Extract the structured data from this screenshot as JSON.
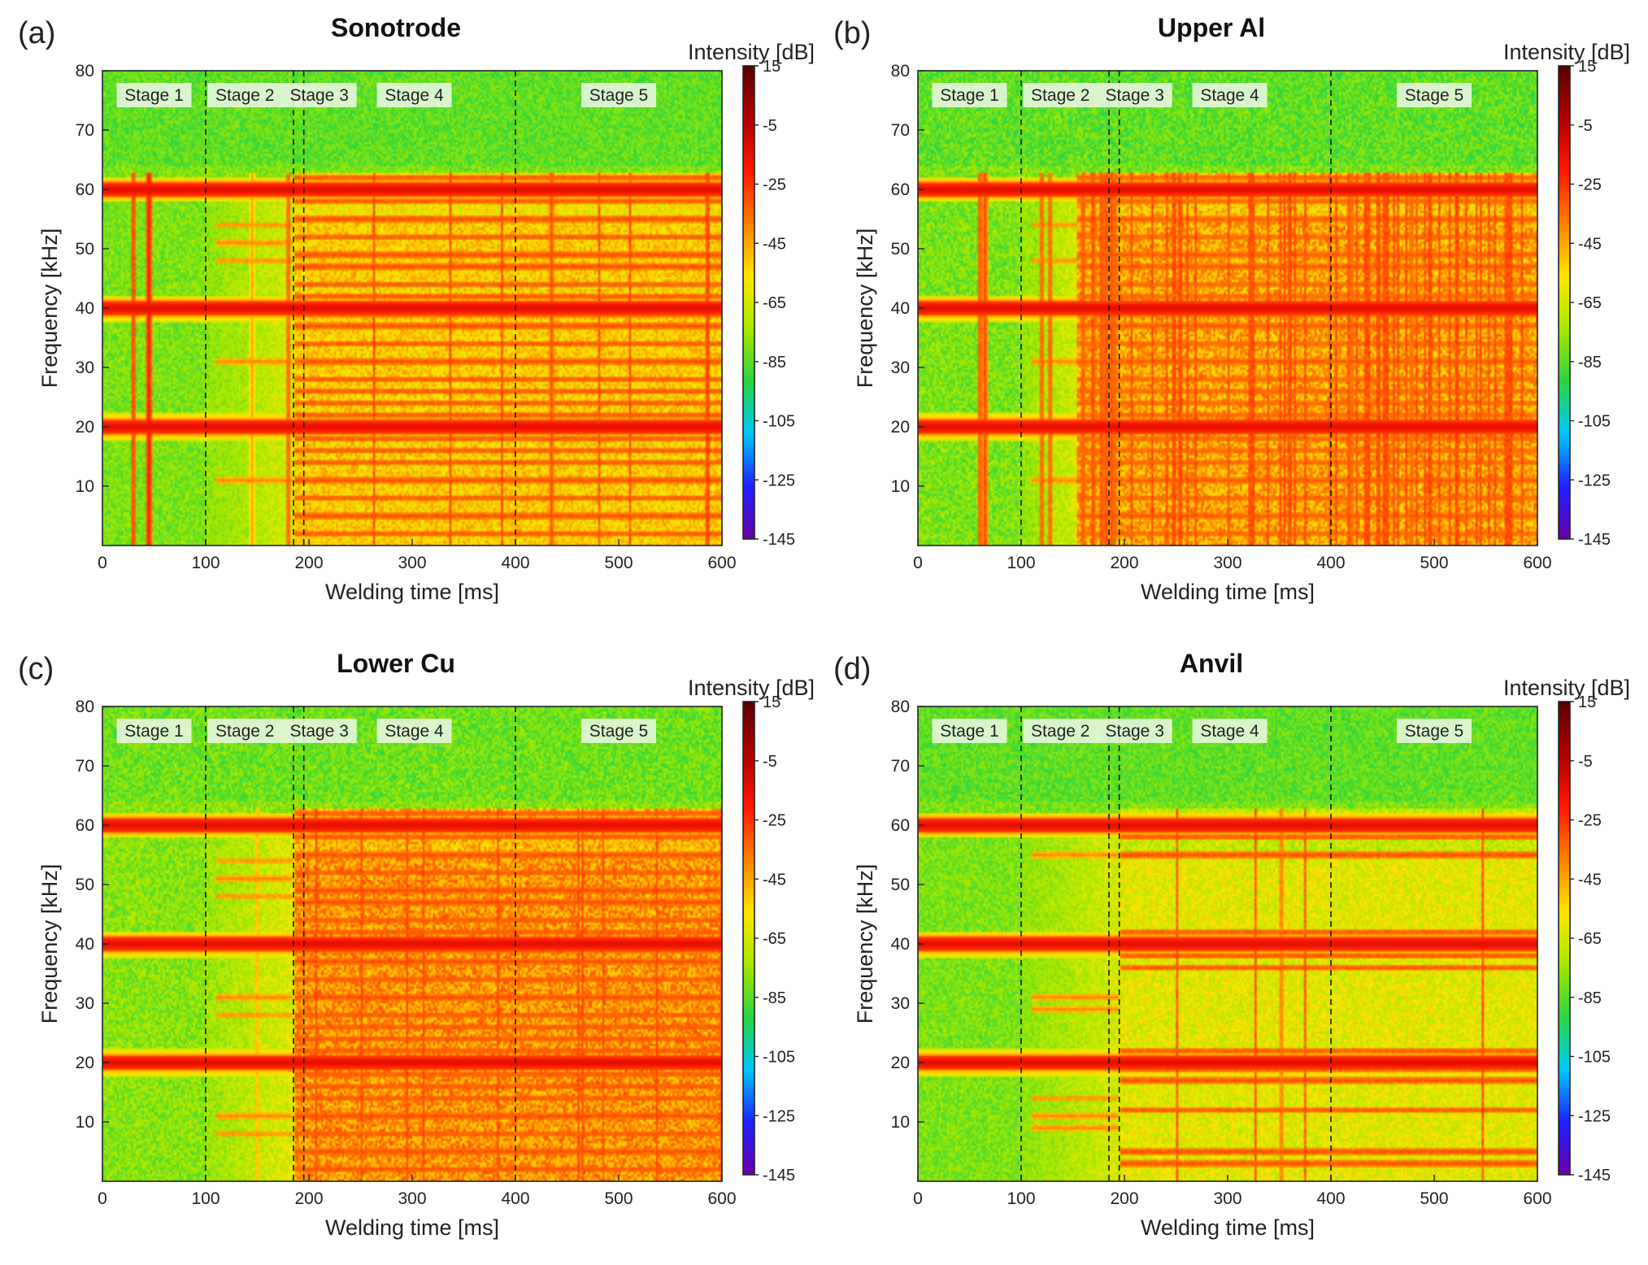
{
  "colors": {
    "colormap": [
      "#6a00a8",
      "#2020ff",
      "#00c8ff",
      "#2ad640",
      "#a8e800",
      "#ffe600",
      "#ff8000",
      "#ff1a00",
      "#b00000",
      "#5a0000"
    ],
    "background_green": "#6fd84a"
  },
  "chart_data": [
    {
      "id": "a",
      "type": "heatmap",
      "panel_label": "(a)",
      "title": "Sonotrode",
      "xlabel": "Welding time [ms]",
      "ylabel": "Frequency [kHz]",
      "xlim": [
        0,
        600
      ],
      "ylim": [
        0,
        80
      ],
      "xticks": [
        "0",
        "100",
        "200",
        "300",
        "400",
        "500",
        "600"
      ],
      "yticks": [
        "10",
        "20",
        "30",
        "40",
        "50",
        "60",
        "70",
        "80"
      ],
      "colorbar": {
        "title": "Intensity [dB]",
        "ticks": [
          "15",
          "-5",
          "-25",
          "-45",
          "-65",
          "-85",
          "-105",
          "-125",
          "-145"
        ],
        "range": [
          -145,
          15
        ]
      },
      "stage_boundaries_ms": [
        100,
        185,
        195,
        400
      ],
      "stages": [
        {
          "label": "Stage 1",
          "center_ms": 50
        },
        {
          "label": "Stage 2",
          "center_ms": 138
        },
        {
          "label": "Stage 3",
          "center_ms": 210
        },
        {
          "label": "Stage 4",
          "center_ms": 302
        },
        {
          "label": "Stage 5",
          "center_ms": 500
        }
      ],
      "background_db": -80,
      "onset_ms": 185,
      "texture_db": -52,
      "noise_db": 10,
      "harmonics_khz": [
        20,
        40,
        60
      ],
      "bands_khz": [
        2,
        5,
        8,
        11,
        14,
        16,
        18,
        22,
        24,
        26,
        28,
        31,
        34,
        37,
        39,
        42,
        44,
        47,
        49,
        52,
        55,
        58,
        62
      ],
      "band_db": -30,
      "vlines_ms": [
        [
          30,
          -25
        ],
        [
          45,
          -20
        ],
        [
          145,
          -45
        ],
        [
          180,
          -30
        ],
        [
          435,
          -30
        ]
      ],
      "vdensity": 0.03,
      "early_bands_khz": [
        11,
        31,
        48,
        51,
        54
      ]
    },
    {
      "id": "b",
      "type": "heatmap",
      "panel_label": "(b)",
      "title": "Upper Al",
      "xlabel": "Welding time [ms]",
      "ylabel": "Frequency [kHz]",
      "xlim": [
        0,
        600
      ],
      "ylim": [
        0,
        80
      ],
      "xticks": [
        "0",
        "100",
        "200",
        "300",
        "400",
        "500",
        "600"
      ],
      "yticks": [
        "10",
        "20",
        "30",
        "40",
        "50",
        "60",
        "70",
        "80"
      ],
      "colorbar": {
        "title": "Intensity [dB]",
        "ticks": [
          "15",
          "-5",
          "-25",
          "-45",
          "-65",
          "-85",
          "-105",
          "-125",
          "-145"
        ],
        "range": [
          -145,
          15
        ]
      },
      "stage_boundaries_ms": [
        100,
        185,
        195,
        400
      ],
      "stages": [
        {
          "label": "Stage 1",
          "center_ms": 50
        },
        {
          "label": "Stage 2",
          "center_ms": 138
        },
        {
          "label": "Stage 3",
          "center_ms": 210
        },
        {
          "label": "Stage 4",
          "center_ms": 302
        },
        {
          "label": "Stage 5",
          "center_ms": 500
        }
      ],
      "background_db": -80,
      "onset_ms": 155,
      "texture_db": -45,
      "noise_db": 12,
      "harmonics_khz": [
        20,
        40,
        60
      ],
      "bands_khz": [
        2,
        5,
        8,
        11,
        14,
        16,
        18,
        22,
        24,
        26,
        28,
        31,
        34,
        37,
        39,
        42,
        44,
        47,
        49,
        52,
        55,
        58,
        62
      ],
      "band_db": -32,
      "vlines_ms": [
        [
          60,
          -28
        ],
        [
          65,
          -28
        ],
        [
          120,
          -30
        ],
        [
          128,
          -30
        ],
        [
          160,
          -28
        ],
        [
          170,
          -28
        ],
        [
          180,
          -28
        ],
        [
          190,
          -28
        ],
        [
          420,
          -30
        ],
        [
          478,
          -30
        ]
      ],
      "vdensity": 0.3,
      "early_bands_khz": [
        11,
        31,
        48,
        54
      ]
    },
    {
      "id": "c",
      "type": "heatmap",
      "panel_label": "(c)",
      "title": "Lower Cu",
      "xlabel": "Welding time [ms]",
      "ylabel": "Frequency [kHz]",
      "xlim": [
        0,
        600
      ],
      "ylim": [
        0,
        80
      ],
      "xticks": [
        "0",
        "100",
        "200",
        "300",
        "400",
        "500",
        "600"
      ],
      "yticks": [
        "10",
        "20",
        "30",
        "40",
        "50",
        "60",
        "70",
        "80"
      ],
      "colorbar": {
        "title": "Intensity [dB]",
        "ticks": [
          "15",
          "-5",
          "-25",
          "-45",
          "-65",
          "-85",
          "-105",
          "-125",
          "-145"
        ],
        "range": [
          -145,
          15
        ]
      },
      "stage_boundaries_ms": [
        100,
        185,
        195,
        400
      ],
      "stages": [
        {
          "label": "Stage 1",
          "center_ms": 50
        },
        {
          "label": "Stage 2",
          "center_ms": 138
        },
        {
          "label": "Stage 3",
          "center_ms": 210
        },
        {
          "label": "Stage 4",
          "center_ms": 302
        },
        {
          "label": "Stage 5",
          "center_ms": 500
        }
      ],
      "background_db": -78,
      "onset_ms": 185,
      "texture_db": -42,
      "noise_db": 12,
      "harmonics_khz": [
        20,
        40,
        60
      ],
      "bands_khz": [
        2,
        5,
        8,
        11,
        14,
        16,
        18,
        22,
        24,
        26,
        28,
        31,
        34,
        37,
        39,
        42,
        44,
        47,
        49,
        52,
        55,
        58,
        62
      ],
      "band_db": -30,
      "vlines_ms": [
        [
          150,
          -45
        ]
      ],
      "vdensity": 0.02,
      "early_bands_khz": [
        8,
        11,
        28,
        31,
        48,
        51,
        54
      ]
    },
    {
      "id": "d",
      "type": "heatmap",
      "panel_label": "(d)",
      "title": "Anvil",
      "xlabel": "Welding time [ms]",
      "ylabel": "Frequency [kHz]",
      "xlim": [
        0,
        600
      ],
      "ylim": [
        0,
        80
      ],
      "xticks": [
        "0",
        "100",
        "200",
        "300",
        "400",
        "500",
        "600"
      ],
      "yticks": [
        "10",
        "20",
        "30",
        "40",
        "50",
        "60",
        "70",
        "80"
      ],
      "colorbar": {
        "title": "Intensity [dB]",
        "ticks": [
          "15",
          "-5",
          "-25",
          "-45",
          "-65",
          "-85",
          "-105",
          "-125",
          "-145"
        ],
        "range": [
          -145,
          15
        ]
      },
      "stage_boundaries_ms": [
        100,
        185,
        195,
        400
      ],
      "stages": [
        {
          "label": "Stage 1",
          "center_ms": 50
        },
        {
          "label": "Stage 2",
          "center_ms": 138
        },
        {
          "label": "Stage 3",
          "center_ms": 210
        },
        {
          "label": "Stage 4",
          "center_ms": 302
        },
        {
          "label": "Stage 5",
          "center_ms": 500
        }
      ],
      "background_db": -80,
      "onset_ms": 195,
      "texture_db": -62,
      "noise_db": 10,
      "harmonics_khz": [
        20,
        40,
        60
      ],
      "bands_khz": [
        3,
        5,
        12,
        17,
        19,
        22,
        36,
        38,
        42,
        55,
        58,
        60
      ],
      "band_db": -30,
      "vlines_ms": [
        [
          352,
          -35
        ]
      ],
      "vdensity": 0.01,
      "early_bands_khz": [
        9,
        11,
        14,
        29,
        31,
        55
      ]
    }
  ]
}
